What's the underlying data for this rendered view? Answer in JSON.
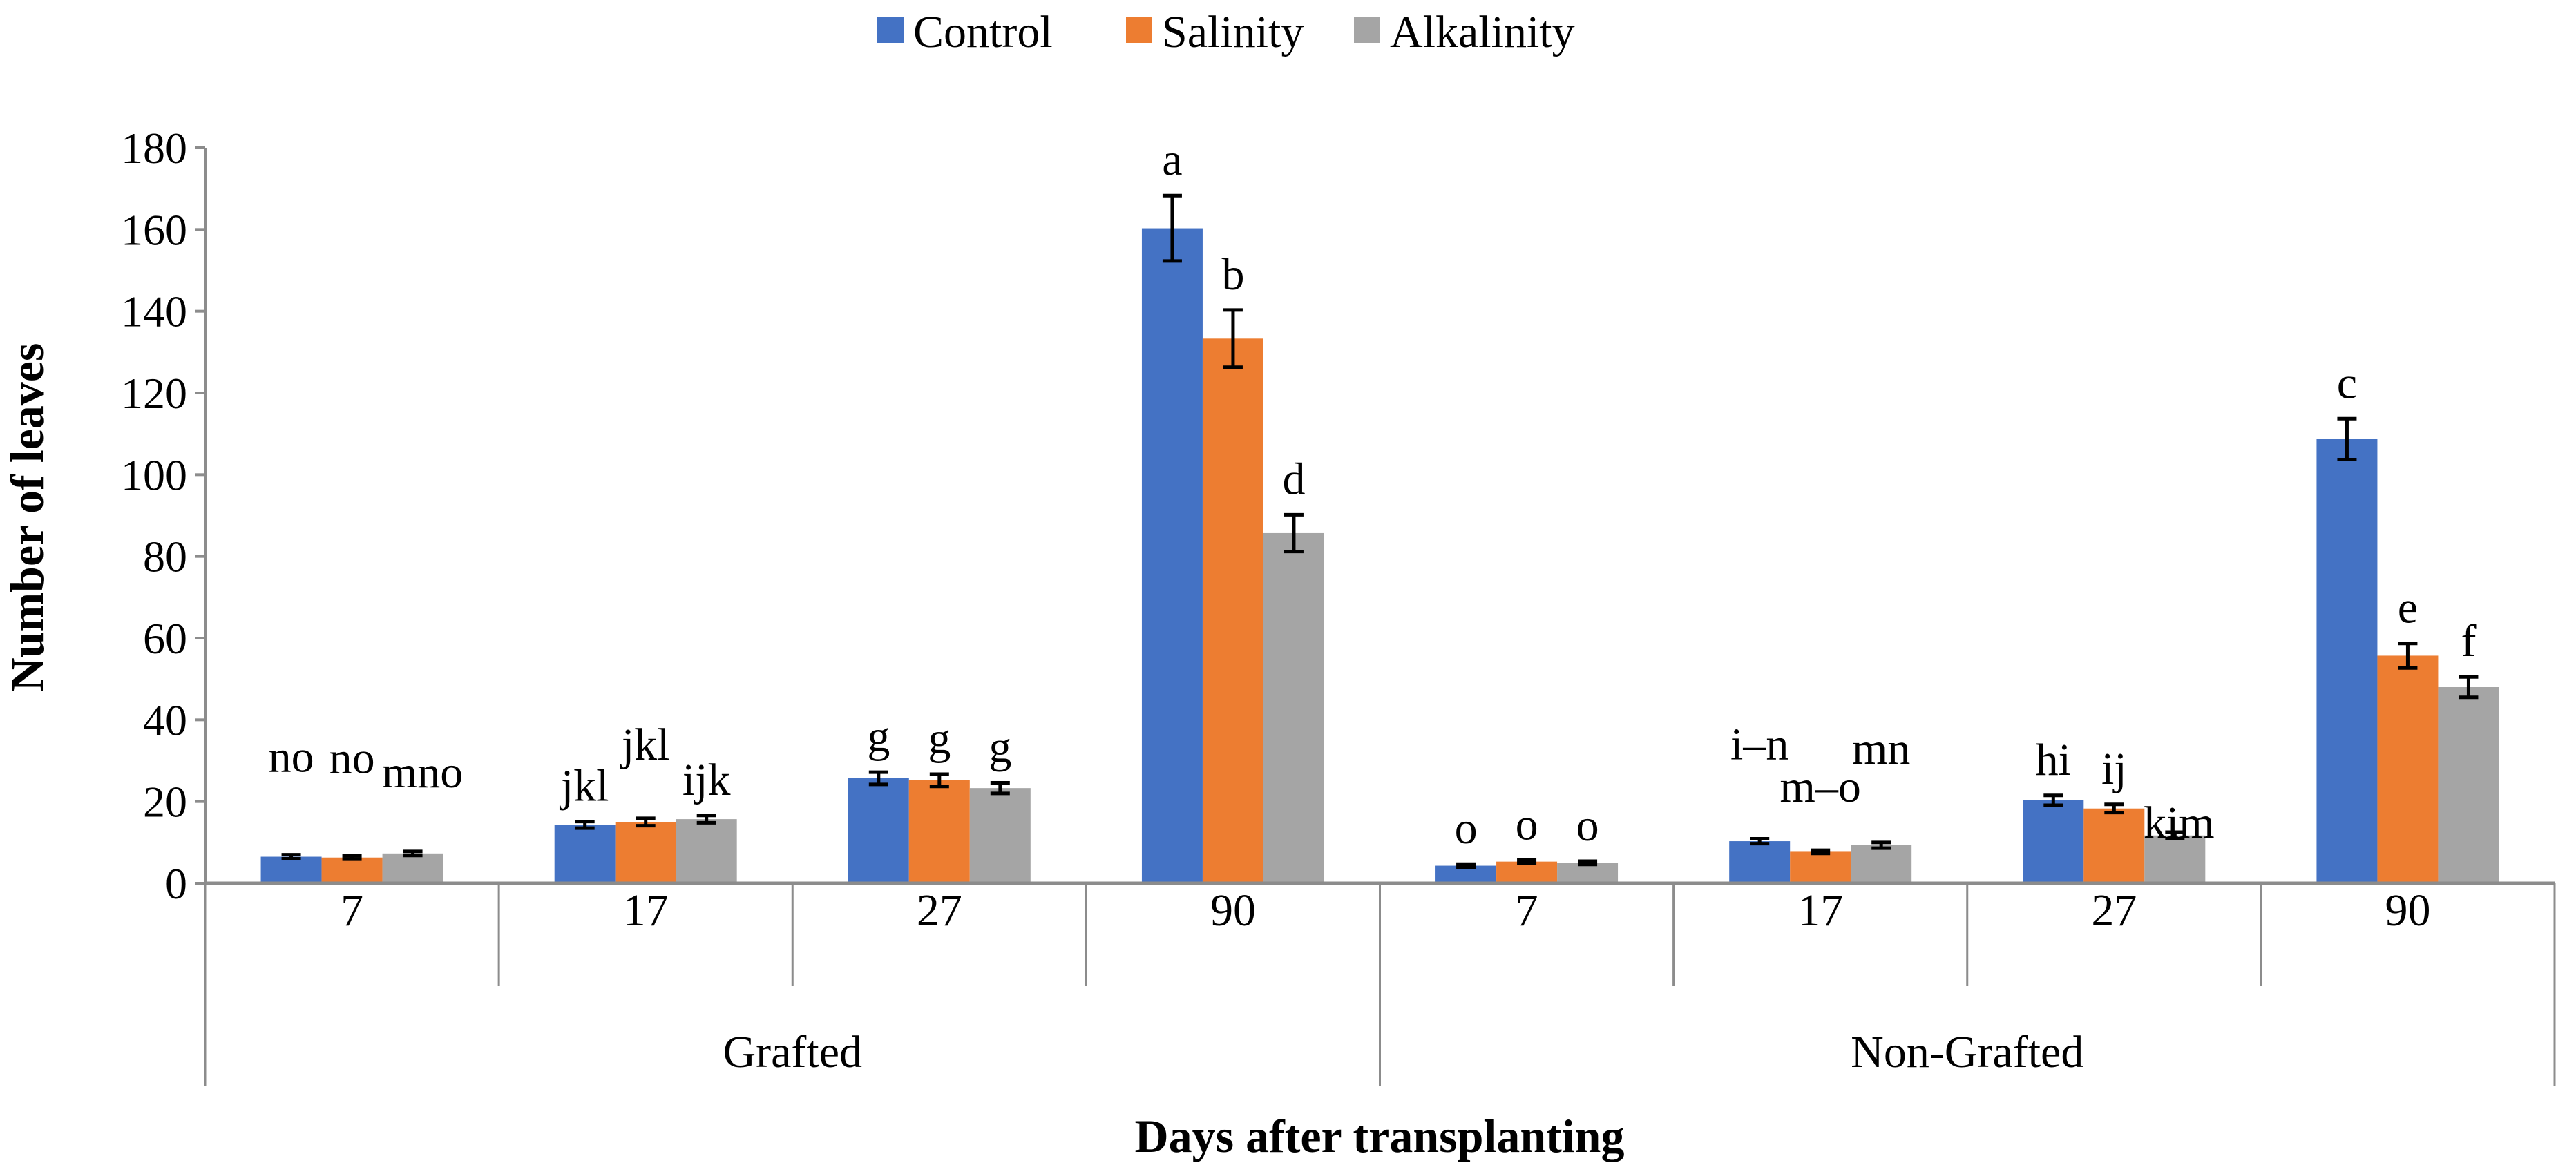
{
  "chart_data": {
    "type": "bar",
    "title": "",
    "xlabel": "Days after transplanting",
    "ylabel": "Number of leaves",
    "ylim": [
      0,
      180
    ],
    "yticks": [
      0,
      20,
      40,
      60,
      80,
      100,
      120,
      140,
      160,
      180
    ],
    "grid": false,
    "legend_position": "top-center",
    "groups": [
      {
        "label": "Grafted",
        "categories": [
          "7",
          "17",
          "27",
          "90"
        ]
      },
      {
        "label": "Non-Grafted",
        "categories": [
          "7",
          "17",
          "27",
          "90"
        ]
      }
    ],
    "categories": [
      "7",
      "17",
      "27",
      "90",
      "7",
      "17",
      "27",
      "90"
    ],
    "series": [
      {
        "name": "Control",
        "color": "#4472C4",
        "values": [
          6.5,
          14.3,
          25.7,
          160.3,
          4.3,
          10.3,
          20.3,
          108.7
        ],
        "errors": [
          0.5,
          0.8,
          1.5,
          8,
          0.4,
          0.6,
          1.2,
          5
        ],
        "letters": [
          "no",
          "jkl",
          "g",
          "a",
          "o",
          "i–n",
          "hi",
          "c"
        ]
      },
      {
        "name": "Salinity",
        "color": "#ED7D31",
        "values": [
          6.3,
          15.0,
          25.2,
          133.3,
          5.3,
          7.7,
          18.3,
          55.7
        ],
        "errors": [
          0.4,
          0.9,
          1.5,
          7,
          0.4,
          0.4,
          1.0,
          3
        ],
        "letters": [
          "no",
          "jkl",
          "g",
          "b",
          "o",
          "m–o",
          "ij",
          "e"
        ]
      },
      {
        "name": "Alkalinity",
        "color": "#A5A5A5",
        "values": [
          7.3,
          15.7,
          23.3,
          85.7,
          5.0,
          9.3,
          11.7,
          48.0
        ],
        "errors": [
          0.5,
          0.9,
          1.3,
          4.5,
          0.4,
          0.7,
          0.8,
          2.5
        ],
        "letters": [
          "mno",
          "ijk",
          "g",
          "d",
          "o",
          "mn",
          "kim",
          "f"
        ]
      }
    ]
  }
}
